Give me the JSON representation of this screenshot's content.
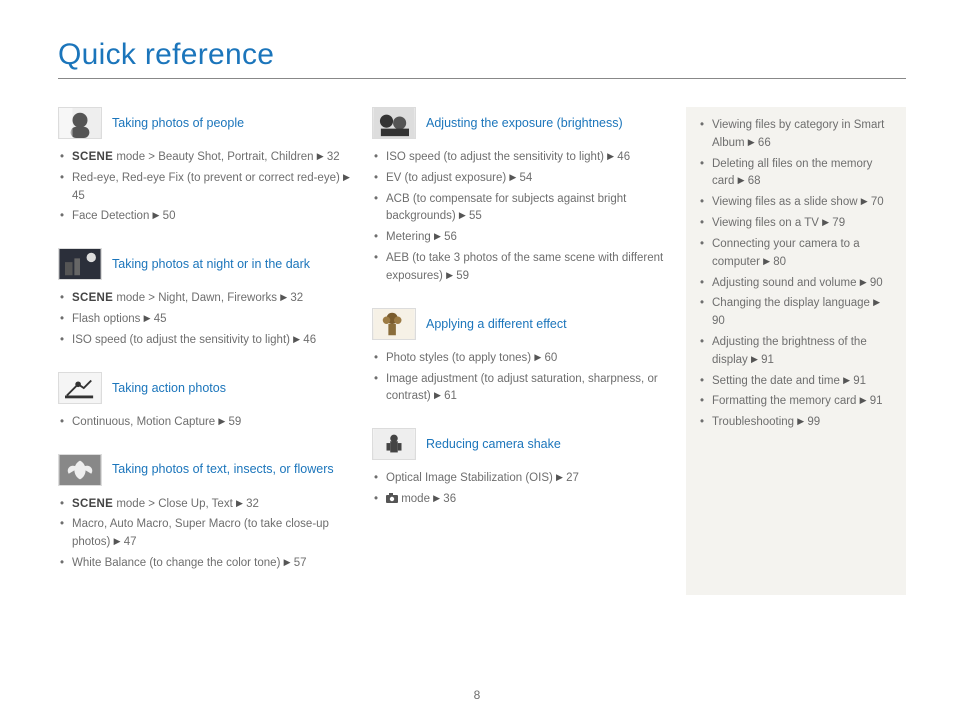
{
  "page_title": "Quick reference",
  "page_number": "8",
  "col1": [
    {
      "title": "Taking photos of people",
      "thumb": "face",
      "items": [
        {
          "pre": "SCENE",
          "text": " mode > Beauty Shot, Portrait, Children ",
          "page": "32"
        },
        {
          "text": "Red-eye, Red-eye Fix (to prevent or correct red-eye) ",
          "page": "45"
        },
        {
          "text": "Face Detection ",
          "page": "50"
        }
      ]
    },
    {
      "title": "Taking photos at night or in the dark",
      "thumb": "night",
      "items": [
        {
          "pre": "SCENE",
          "text": " mode > Night, Dawn, Fireworks ",
          "page": "32"
        },
        {
          "text": "Flash options ",
          "page": "45"
        },
        {
          "text": "ISO speed (to adjust the sensitivity to light) ",
          "page": "46"
        }
      ]
    },
    {
      "title": "Taking action photos",
      "thumb": "action",
      "items": [
        {
          "text": "Continuous, Motion Capture ",
          "page": "59"
        }
      ]
    },
    {
      "title": "Taking photos of text, insects, or flowers",
      "thumb": "macro",
      "items": [
        {
          "pre": "SCENE",
          "text": " mode > Close Up, Text ",
          "page": "32"
        },
        {
          "text": "Macro, Auto Macro, Super Macro (to take close-up photos) ",
          "page": "47"
        },
        {
          "text": "White Balance (to change the color tone) ",
          "page": "57"
        }
      ]
    }
  ],
  "col2": [
    {
      "title": "Adjusting the exposure (brightness)",
      "thumb": "exposure",
      "items": [
        {
          "text": "ISO speed (to adjust the sensitivity to light) ",
          "page": "46"
        },
        {
          "text": "EV (to adjust exposure) ",
          "page": "54"
        },
        {
          "text": "ACB (to compensate for subjects against bright backgrounds) ",
          "page": "55"
        },
        {
          "text": "Metering ",
          "page": "56"
        },
        {
          "text": "AEB (to take 3 photos of the same scene with different exposures) ",
          "page": "59"
        }
      ]
    },
    {
      "title": "Applying a different effect",
      "thumb": "effect",
      "items": [
        {
          "text": "Photo styles (to apply tones) ",
          "page": "60"
        },
        {
          "text": "Image adjustment (to adjust saturation, sharpness, or contrast) ",
          "page": "61"
        }
      ]
    },
    {
      "title": "Reducing camera shake",
      "thumb": "shake",
      "items": [
        {
          "text": "Optical Image Stabilization (OIS) ",
          "page": "27"
        },
        {
          "camicon": true,
          "text": " mode ",
          "page": "36"
        }
      ]
    }
  ],
  "sidebar": [
    {
      "text": "Viewing files by category in Smart Album ",
      "page": "66"
    },
    {
      "text": "Deleting all files on the memory card ",
      "page": "68"
    },
    {
      "text": "Viewing files as a slide show ",
      "page": "70"
    },
    {
      "text": "Viewing files on a TV ",
      "page": "79"
    },
    {
      "text": "Connecting your camera to a computer ",
      "page": "80"
    },
    {
      "text": "Adjusting sound and volume ",
      "page": "90"
    },
    {
      "text": "Changing the display language ",
      "page": "90"
    },
    {
      "text": "Adjusting the brightness of the display ",
      "page": "91"
    },
    {
      "text": "Setting the date and time ",
      "page": "91"
    },
    {
      "text": "Formatting the memory card ",
      "page": "91"
    },
    {
      "text": "Troubleshooting ",
      "page": "99"
    }
  ]
}
